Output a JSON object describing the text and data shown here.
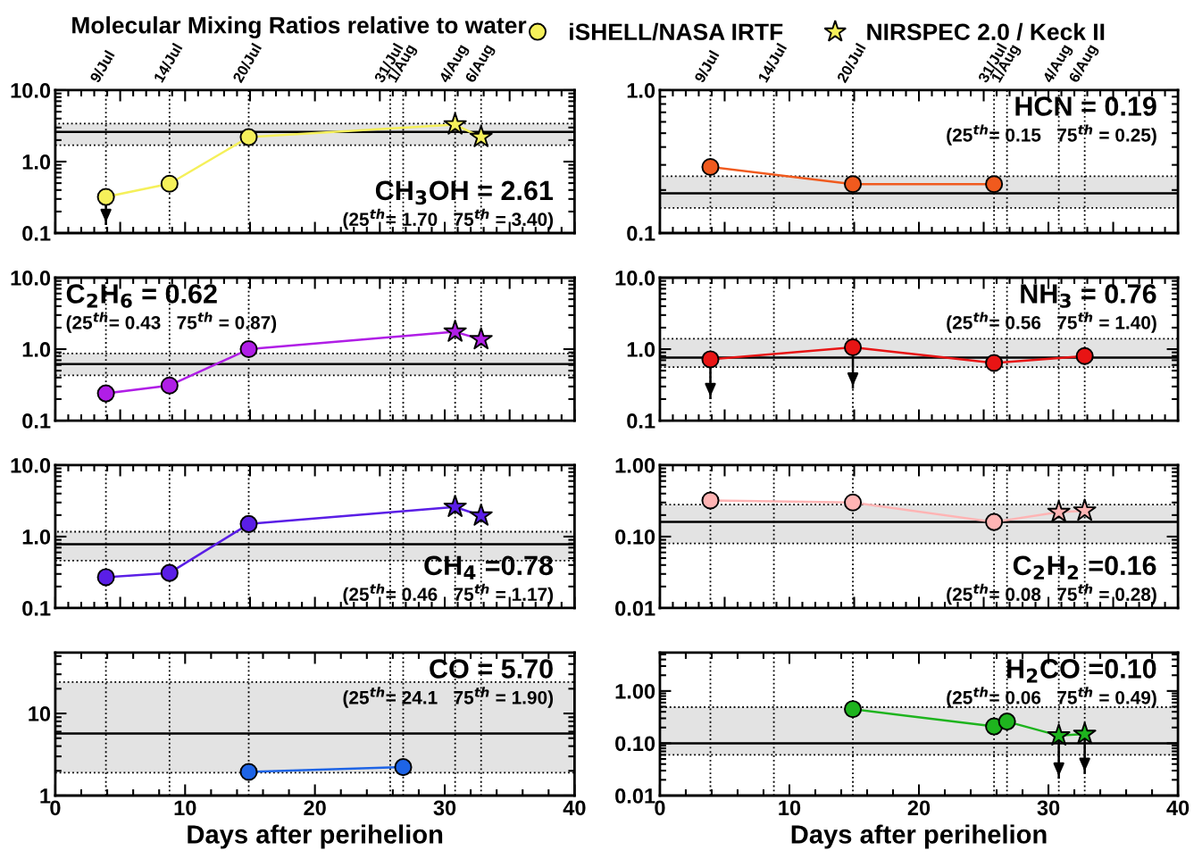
{
  "chart_data": [
    {
      "type": "line",
      "title": "Molecular Mixing Ratios relative to water",
      "legend": "top",
      "log": "y",
      "tick_labels": "y",
      "xlim": [
        0,
        40
      ],
      "ylim": [
        0.1,
        10
      ],
      "yticks": [
        0.1,
        {
          "value": 1,
          "label": "1.0"
        },
        {
          "value": 10,
          "label": "10.0"
        }
      ],
      "ref_lines": [
        {
          "axis": "y",
          "value": 2.61,
          "color": "#000000",
          "line_style": "solid"
        },
        {
          "axis": "x",
          "value": 3.9,
          "label": "9/Jul",
          "color": "#000000",
          "line_style": "dotted"
        },
        {
          "axis": "x",
          "value": 8.8,
          "label": "14/Jul",
          "color": "#000000",
          "line_style": "dotted"
        },
        {
          "axis": "x",
          "value": 14.9,
          "label": "20/Jul",
          "color": "#000000",
          "line_style": "dotted"
        },
        {
          "axis": "x",
          "value": 25.8,
          "label": "31/Jul",
          "color": "#000000",
          "line_style": "dotted"
        },
        {
          "axis": "x",
          "value": 26.8,
          "label": "1/Aug",
          "color": "#000000",
          "line_style": "dotted"
        },
        {
          "axis": "x",
          "value": 30.8,
          "label": "4/Aug",
          "color": "#000000",
          "line_style": "dotted"
        },
        {
          "axis": "x",
          "value": 32.8,
          "label": "6/Aug",
          "color": "#000000",
          "line_style": "dotted"
        }
      ],
      "bands": [
        {
          "axis": "y",
          "from": 1.7,
          "to": 3.4,
          "color": "#e3e3e3"
        }
      ],
      "annotations": [
        "CH$_{3}$OH = 2.61",
        "(25$^{th}$= 1.70   75$^{th}$ = 3.40)"
      ],
      "series": [
        {
          "type": "line",
          "marker": "none",
          "color": "#f5f05a",
          "x": [
            3.9,
            8.8,
            14.9,
            30.8,
            32.8
          ],
          "values": [
            0.32,
            0.49,
            2.2,
            3.3,
            2.2
          ]
        },
        {
          "type": "scatter",
          "marker": "circle",
          "name": "iSHELL/NASA IRTF",
          "color": "#f5f05a",
          "x": [
            3.9,
            8.8,
            14.9
          ],
          "values": [
            0.32,
            0.49,
            2.2
          ],
          "errors": [
            [
              0.13,
              0.32
            ],
            null,
            null
          ]
        },
        {
          "type": "scatter",
          "marker": "star",
          "name": "NIRSPEC 2.0 / Keck II",
          "color": "#f5f05a",
          "x": [
            30.8,
            32.8
          ],
          "values": [
            3.3,
            2.2
          ]
        }
      ]
    },
    {
      "type": "line",
      "log": "y",
      "tick_labels": "y",
      "xlim": [
        0,
        40
      ],
      "ylim": [
        0.1,
        1
      ],
      "yticks": [
        0.1,
        {
          "value": 1,
          "label": "1.0"
        }
      ],
      "ref_lines": [
        {
          "axis": "y",
          "value": 0.19,
          "color": "#000000",
          "line_style": "solid"
        },
        {
          "axis": "x",
          "value": 3.9,
          "label": "9/Jul",
          "color": "#000000",
          "line_style": "dotted"
        },
        {
          "axis": "x",
          "value": 8.8,
          "label": "14/Jul",
          "color": "#000000",
          "line_style": "dotted"
        },
        {
          "axis": "x",
          "value": 14.9,
          "label": "20/Jul",
          "color": "#000000",
          "line_style": "dotted"
        },
        {
          "axis": "x",
          "value": 25.8,
          "label": "31/Jul",
          "color": "#000000",
          "line_style": "dotted"
        },
        {
          "axis": "x",
          "value": 26.8,
          "label": "1/Aug",
          "color": "#000000",
          "line_style": "dotted"
        },
        {
          "axis": "x",
          "value": 30.8,
          "label": "4/Aug",
          "color": "#000000",
          "line_style": "dotted"
        },
        {
          "axis": "x",
          "value": 32.8,
          "label": "6/Aug",
          "color": "#000000",
          "line_style": "dotted"
        }
      ],
      "bands": [
        {
          "axis": "y",
          "from": 0.15,
          "to": 0.25,
          "color": "#e3e3e3"
        }
      ],
      "annotations": [
        "HCN = 0.19",
        "(25$^{th}$= 0.15   75$^{th}$ = 0.25)"
      ],
      "series": [
        {
          "type": "line",
          "marker": "none",
          "color": "#f05a1e",
          "x": [
            3.9,
            14.9,
            25.8
          ],
          "values": [
            0.29,
            0.22,
            0.22
          ]
        },
        {
          "type": "scatter",
          "marker": "circle",
          "color": "#f05a1e",
          "x": [
            3.9,
            14.9,
            25.8
          ],
          "values": [
            0.29,
            0.22,
            0.22
          ]
        }
      ]
    },
    {
      "type": "line",
      "log": "y",
      "tick_labels": "y",
      "xlim": [
        0,
        40
      ],
      "ylim": [
        0.1,
        10
      ],
      "yticks": [
        0.1,
        {
          "value": 1,
          "label": "1.0"
        },
        {
          "value": 10,
          "label": "10.0"
        }
      ],
      "ref_lines": [
        {
          "axis": "y",
          "value": 0.62,
          "color": "#000000",
          "line_style": "solid"
        },
        {
          "axis": "x",
          "value": 3.9,
          "color": "#000000",
          "line_style": "dotted"
        },
        {
          "axis": "x",
          "value": 8.8,
          "color": "#000000",
          "line_style": "dotted"
        },
        {
          "axis": "x",
          "value": 14.9,
          "color": "#000000",
          "line_style": "dotted"
        },
        {
          "axis": "x",
          "value": 25.8,
          "color": "#000000",
          "line_style": "dotted"
        },
        {
          "axis": "x",
          "value": 26.8,
          "color": "#000000",
          "line_style": "dotted"
        },
        {
          "axis": "x",
          "value": 30.8,
          "color": "#000000",
          "line_style": "dotted"
        },
        {
          "axis": "x",
          "value": 32.8,
          "color": "#000000",
          "line_style": "dotted"
        }
      ],
      "bands": [
        {
          "axis": "y",
          "from": 0.43,
          "to": 0.87,
          "color": "#e3e3e3"
        }
      ],
      "annotations": [
        "C$_{2}$H$_{6}$ = 0.62",
        "(25$^{th}$= 0.43   75$^{th}$ = 0.87)"
      ],
      "series": [
        {
          "type": "line",
          "marker": "none",
          "color": "#b01ee6",
          "x": [
            3.9,
            8.8,
            14.9,
            30.8,
            32.8
          ],
          "values": [
            0.24,
            0.31,
            1.0,
            1.75,
            1.37
          ]
        },
        {
          "type": "scatter",
          "marker": "circle",
          "color": "#b01ee6",
          "x": [
            3.9,
            8.8,
            14.9
          ],
          "values": [
            0.24,
            0.31,
            1.0
          ]
        },
        {
          "type": "scatter",
          "marker": "star",
          "color": "#b01ee6",
          "x": [
            30.8,
            32.8
          ],
          "values": [
            1.75,
            1.37
          ]
        }
      ]
    },
    {
      "type": "line",
      "log": "y",
      "tick_labels": "y",
      "xlim": [
        0,
        40
      ],
      "ylim": [
        0.1,
        10
      ],
      "yticks": [
        0.1,
        {
          "value": 1,
          "label": "1.0"
        },
        {
          "value": 10,
          "label": "10.0"
        }
      ],
      "ref_lines": [
        {
          "axis": "y",
          "value": 0.76,
          "color": "#000000",
          "line_style": "solid"
        },
        {
          "axis": "x",
          "value": 3.9,
          "color": "#000000",
          "line_style": "dotted"
        },
        {
          "axis": "x",
          "value": 8.8,
          "color": "#000000",
          "line_style": "dotted"
        },
        {
          "axis": "x",
          "value": 14.9,
          "color": "#000000",
          "line_style": "dotted"
        },
        {
          "axis": "x",
          "value": 25.8,
          "color": "#000000",
          "line_style": "dotted"
        },
        {
          "axis": "x",
          "value": 26.8,
          "color": "#000000",
          "line_style": "dotted"
        },
        {
          "axis": "x",
          "value": 30.8,
          "color": "#000000",
          "line_style": "dotted"
        },
        {
          "axis": "x",
          "value": 32.8,
          "color": "#000000",
          "line_style": "dotted"
        }
      ],
      "bands": [
        {
          "axis": "y",
          "from": 0.56,
          "to": 1.4,
          "color": "#e3e3e3"
        }
      ],
      "annotations": [
        "NH$_{3}$ = 0.76",
        "(25$^{th}$= 0.56   75$^{th}$ = 1.40)"
      ],
      "series": [
        {
          "type": "line",
          "marker": "none",
          "color": "#e81414",
          "x": [
            3.9,
            14.9,
            25.8,
            32.8
          ],
          "values": [
            0.72,
            1.06,
            0.64,
            0.8
          ]
        },
        {
          "type": "scatter",
          "marker": "circle",
          "color": "#e81414",
          "x": [
            3.9,
            14.9,
            25.8,
            32.8
          ],
          "values": [
            0.72,
            1.06,
            0.64,
            0.8
          ],
          "errors": [
            [
              0.2,
              0.72
            ],
            [
              0.28,
              1.06
            ],
            null,
            null
          ]
        }
      ]
    },
    {
      "type": "line",
      "log": "y",
      "tick_labels": "y",
      "xlim": [
        0,
        40
      ],
      "ylim": [
        0.1,
        10
      ],
      "yticks": [
        0.1,
        {
          "value": 1,
          "label": "1.0"
        },
        {
          "value": 10,
          "label": "10.0"
        }
      ],
      "ref_lines": [
        {
          "axis": "y",
          "value": 0.78,
          "color": "#000000",
          "line_style": "solid"
        },
        {
          "axis": "x",
          "value": 3.9,
          "color": "#000000",
          "line_style": "dotted"
        },
        {
          "axis": "x",
          "value": 8.8,
          "color": "#000000",
          "line_style": "dotted"
        },
        {
          "axis": "x",
          "value": 14.9,
          "color": "#000000",
          "line_style": "dotted"
        },
        {
          "axis": "x",
          "value": 25.8,
          "color": "#000000",
          "line_style": "dotted"
        },
        {
          "axis": "x",
          "value": 26.8,
          "color": "#000000",
          "line_style": "dotted"
        },
        {
          "axis": "x",
          "value": 30.8,
          "color": "#000000",
          "line_style": "dotted"
        },
        {
          "axis": "x",
          "value": 32.8,
          "color": "#000000",
          "line_style": "dotted"
        }
      ],
      "bands": [
        {
          "axis": "y",
          "from": 0.46,
          "to": 1.17,
          "color": "#e3e3e3"
        }
      ],
      "annotations": [
        "CH$_{4}$ =0.78",
        "(25$^{th}$= 0.46   75$^{th}$ = 1.17)"
      ],
      "series": [
        {
          "type": "line",
          "marker": "none",
          "color": "#5a1ee6",
          "x": [
            3.9,
            8.8,
            14.9,
            30.8,
            32.8
          ],
          "values": [
            0.27,
            0.31,
            1.5,
            2.6,
            1.96
          ]
        },
        {
          "type": "scatter",
          "marker": "circle",
          "color": "#5a1ee6",
          "x": [
            3.9,
            8.8,
            14.9
          ],
          "values": [
            0.27,
            0.31,
            1.5
          ]
        },
        {
          "type": "scatter",
          "marker": "star",
          "color": "#5a1ee6",
          "x": [
            30.8,
            32.8
          ],
          "values": [
            2.6,
            1.96
          ]
        }
      ]
    },
    {
      "type": "line",
      "log": "y",
      "tick_labels": "y",
      "xlim": [
        0,
        40
      ],
      "ylim": [
        0.01,
        1
      ],
      "yticks": [
        {
          "value": 0.01,
          "label": "0.01"
        },
        {
          "value": 0.1,
          "label": "0.10"
        },
        {
          "value": 1,
          "label": "1.00"
        }
      ],
      "ref_lines": [
        {
          "axis": "y",
          "value": 0.16,
          "color": "#000000",
          "line_style": "solid"
        },
        {
          "axis": "x",
          "value": 3.9,
          "color": "#000000",
          "line_style": "dotted"
        },
        {
          "axis": "x",
          "value": 8.8,
          "color": "#000000",
          "line_style": "dotted"
        },
        {
          "axis": "x",
          "value": 14.9,
          "color": "#000000",
          "line_style": "dotted"
        },
        {
          "axis": "x",
          "value": 25.8,
          "color": "#000000",
          "line_style": "dotted"
        },
        {
          "axis": "x",
          "value": 26.8,
          "color": "#000000",
          "line_style": "dotted"
        },
        {
          "axis": "x",
          "value": 30.8,
          "color": "#000000",
          "line_style": "dotted"
        },
        {
          "axis": "x",
          "value": 32.8,
          "color": "#000000",
          "line_style": "dotted"
        }
      ],
      "bands": [
        {
          "axis": "y",
          "from": 0.08,
          "to": 0.28,
          "color": "#e3e3e3"
        }
      ],
      "annotations": [
        "C$_{2}$H$_{2}$ =0.16",
        "(25$^{th}$= 0.08   75$^{th}$ = 0.28)"
      ],
      "series": [
        {
          "type": "line",
          "marker": "none",
          "color": "#ffb4b4",
          "x": [
            3.9,
            14.9,
            25.8,
            30.8,
            32.8
          ],
          "values": [
            0.32,
            0.3,
            0.16,
            0.22,
            0.23
          ]
        },
        {
          "type": "scatter",
          "marker": "circle",
          "color": "#ffb4b4",
          "x": [
            3.9,
            14.9,
            25.8
          ],
          "values": [
            0.32,
            0.3,
            0.16
          ]
        },
        {
          "type": "scatter",
          "marker": "star",
          "color": "#ffb4b4",
          "x": [
            30.8,
            32.8
          ],
          "values": [
            0.22,
            0.23
          ]
        }
      ]
    },
    {
      "type": "line",
      "log": "y",
      "xlabel": "Days after perihelion",
      "xlim": [
        0,
        40
      ],
      "xticks": [
        0,
        10,
        20,
        30,
        40
      ],
      "ylim": [
        1,
        55
      ],
      "yticks": [
        1,
        10
      ],
      "ref_lines": [
        {
          "axis": "y",
          "value": 5.7,
          "color": "#000000",
          "line_style": "solid"
        },
        {
          "axis": "x",
          "value": 3.9,
          "color": "#000000",
          "line_style": "dotted"
        },
        {
          "axis": "x",
          "value": 8.8,
          "color": "#000000",
          "line_style": "dotted"
        },
        {
          "axis": "x",
          "value": 14.9,
          "color": "#000000",
          "line_style": "dotted"
        },
        {
          "axis": "x",
          "value": 25.8,
          "color": "#000000",
          "line_style": "dotted"
        },
        {
          "axis": "x",
          "value": 26.8,
          "color": "#000000",
          "line_style": "dotted"
        },
        {
          "axis": "x",
          "value": 30.8,
          "color": "#000000",
          "line_style": "dotted"
        },
        {
          "axis": "x",
          "value": 32.8,
          "color": "#000000",
          "line_style": "dotted"
        }
      ],
      "bands": [
        {
          "axis": "y",
          "from": 1.9,
          "to": 24.1,
          "color": "#e3e3e3"
        }
      ],
      "annotations": [
        "CO = 5.70",
        "(25$^{th}$= 24.1   75$^{th}$ = 1.90)"
      ],
      "series": [
        {
          "type": "line",
          "marker": "none",
          "color": "#1e64e6",
          "x": [
            14.9,
            26.8
          ],
          "values": [
            1.94,
            2.22
          ]
        },
        {
          "type": "scatter",
          "marker": "circle",
          "color": "#1e64e6",
          "x": [
            14.9,
            26.8
          ],
          "values": [
            1.94,
            2.22
          ]
        }
      ]
    },
    {
      "type": "line",
      "log": "y",
      "xlabel": "Days after perihelion",
      "xlim": [
        0,
        40
      ],
      "xticks": [
        0,
        10,
        20,
        30,
        40
      ],
      "ylim": [
        0.01,
        5.4
      ],
      "yticks": [
        {
          "value": 0.01,
          "label": "0.01"
        },
        {
          "value": 0.1,
          "label": "0.10"
        },
        {
          "value": 1,
          "label": "1.00"
        }
      ],
      "ref_lines": [
        {
          "axis": "y",
          "value": 0.1,
          "color": "#000000",
          "line_style": "solid"
        },
        {
          "axis": "x",
          "value": 3.9,
          "color": "#000000",
          "line_style": "dotted"
        },
        {
          "axis": "x",
          "value": 8.8,
          "color": "#000000",
          "line_style": "dotted"
        },
        {
          "axis": "x",
          "value": 14.9,
          "color": "#000000",
          "line_style": "dotted"
        },
        {
          "axis": "x",
          "value": 25.8,
          "color": "#000000",
          "line_style": "dotted"
        },
        {
          "axis": "x",
          "value": 26.8,
          "color": "#000000",
          "line_style": "dotted"
        },
        {
          "axis": "x",
          "value": 30.8,
          "color": "#000000",
          "line_style": "dotted"
        },
        {
          "axis": "x",
          "value": 32.8,
          "color": "#000000",
          "line_style": "dotted"
        }
      ],
      "bands": [
        {
          "axis": "y",
          "from": 0.06,
          "to": 0.49,
          "color": "#e3e3e3"
        }
      ],
      "annotations": [
        "H$_{2}$CO =0.10",
        "(25$^{th}$= 0.06   75$^{th}$ = 0.49)"
      ],
      "series": [
        {
          "type": "line",
          "marker": "none",
          "color": "#1eb41e",
          "x": [
            14.9,
            25.8,
            26.8,
            30.8,
            32.8
          ],
          "values": [
            0.45,
            0.21,
            0.26,
            0.14,
            0.15
          ]
        },
        {
          "type": "scatter",
          "marker": "circle",
          "color": "#1eb41e",
          "x": [
            14.9,
            25.8,
            26.8
          ],
          "values": [
            0.45,
            0.21,
            0.26
          ]
        },
        {
          "type": "scatter",
          "marker": "star",
          "color": "#1eb41e",
          "x": [
            30.8,
            32.8
          ],
          "values": [
            0.14,
            0.15
          ],
          "errors": [
            [
              0.021,
              0.14
            ],
            [
              0.026,
              0.15
            ]
          ]
        }
      ]
    }
  ]
}
